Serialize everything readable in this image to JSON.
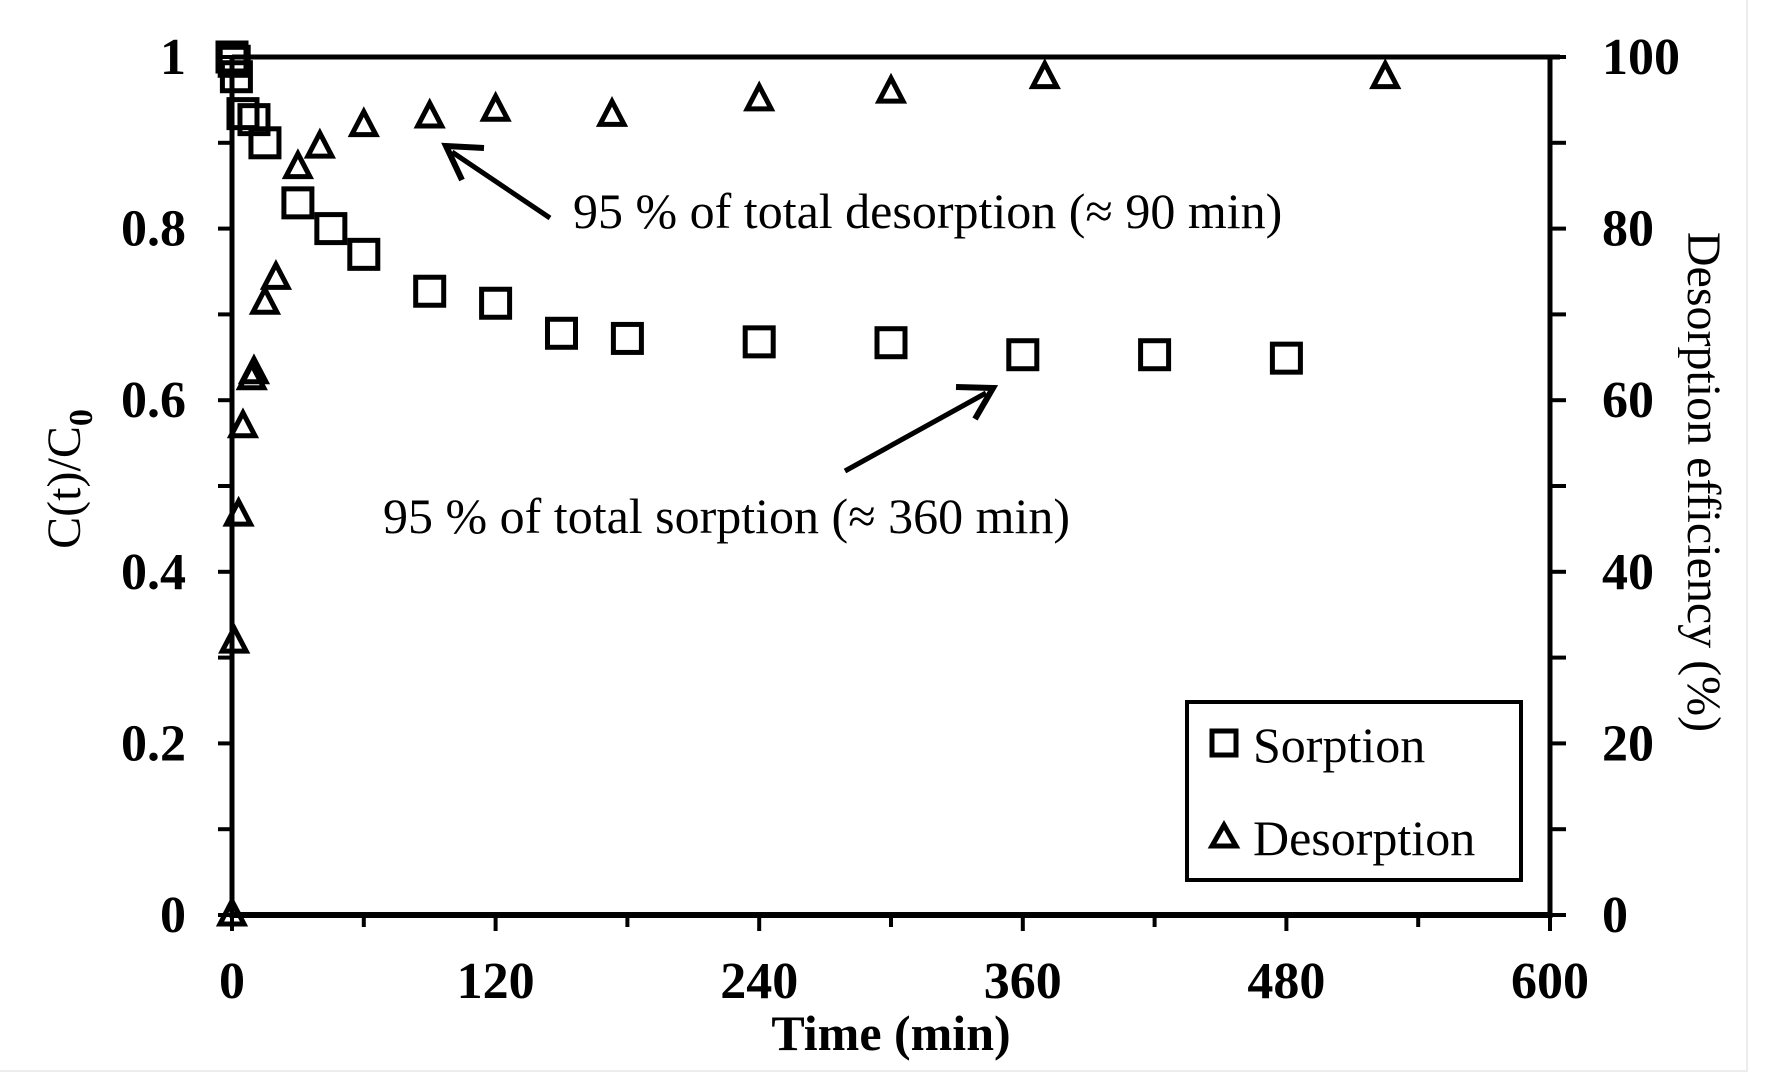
{
  "chart_data": {
    "type": "scatter",
    "title": "",
    "xlabel": "Time (min)",
    "ylabel": "C(t)/C0",
    "ylabel_main": "C(t)/C",
    "ylabel_sub": "0",
    "y2label": "Desorption efficiency (%)",
    "xlim": [
      0,
      600
    ],
    "ylim": [
      0,
      1
    ],
    "y2lim": [
      0,
      100
    ],
    "x_ticks": [
      0,
      120,
      240,
      360,
      480,
      600
    ],
    "x_tick_labels": [
      "0",
      "120",
      "240",
      "360",
      "480",
      "600"
    ],
    "x_minor_step": 60,
    "y_ticks": [
      0,
      0.2,
      0.4,
      0.6,
      0.8,
      1
    ],
    "y_tick_labels": [
      "0",
      "0.2",
      "0.4",
      "0.6",
      "0.8",
      "1"
    ],
    "y_minor_step": 0.1,
    "y2_ticks": [
      0,
      20,
      40,
      60,
      80,
      100
    ],
    "y2_tick_labels": [
      "0",
      "20",
      "40",
      "60",
      "80",
      "100"
    ],
    "y2_minor_step": 10,
    "grid": false,
    "legend_position": "lower right",
    "series": [
      {
        "name": "Sorption",
        "marker": "square",
        "axis": "left",
        "x": [
          0,
          1,
          2,
          5,
          10,
          15,
          30,
          45,
          60,
          90,
          120,
          150,
          180,
          240,
          300,
          360,
          420,
          480
        ],
        "y": [
          1.0,
          0.995,
          0.977,
          0.934,
          0.927,
          0.9,
          0.83,
          0.8,
          0.77,
          0.727,
          0.713,
          0.678,
          0.672,
          0.668,
          0.667,
          0.653,
          0.653,
          0.649
        ]
      },
      {
        "name": "Desorption",
        "marker": "triangle",
        "axis": "right",
        "x": [
          0,
          1,
          3,
          5,
          9,
          10,
          15,
          20,
          30,
          40,
          60,
          90,
          120,
          173,
          240,
          300,
          370,
          525
        ],
        "y": [
          0,
          31.8,
          46.6,
          56.9,
          62.5,
          63.2,
          71.3,
          74.2,
          87.1,
          89.5,
          92.0,
          93.0,
          93.8,
          93.2,
          95.0,
          95.9,
          97.6,
          97.6
        ]
      }
    ],
    "annotations": [
      {
        "text": "95 % of total desorption (≈ 90 min)",
        "arrow_to_x": 90,
        "arrow_to_y_pct": 90
      },
      {
        "text": "95 % of total sorption (≈ 360 min)",
        "arrow_to_x": 355,
        "arrow_to_y": 0.61
      }
    ]
  },
  "legend": {
    "items": [
      {
        "label": "Sorption",
        "marker": "square"
      },
      {
        "label": "Desorption",
        "marker": "triangle"
      }
    ]
  },
  "annotations": {
    "desorption": "95 % of total desorption (≈ 90 min)",
    "sorption": "95 % of total sorption (≈ 360 min)"
  },
  "colors": {
    "ink": "#000000",
    "background": "#ffffff",
    "frame": "#ececec"
  }
}
